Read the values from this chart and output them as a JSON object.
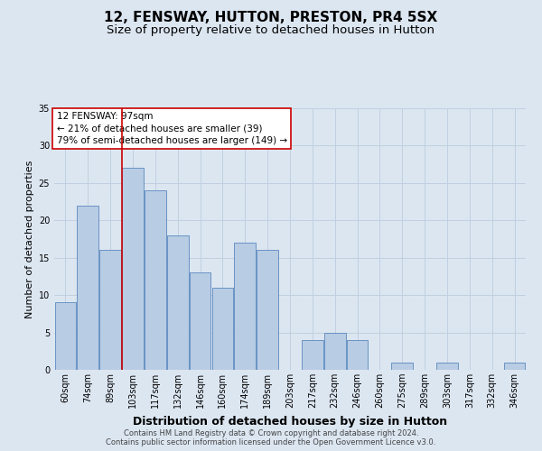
{
  "title": "12, FENSWAY, HUTTON, PRESTON, PR4 5SX",
  "subtitle": "Size of property relative to detached houses in Hutton",
  "xlabel": "Distribution of detached houses by size in Hutton",
  "ylabel": "Number of detached properties",
  "categories": [
    "60sqm",
    "74sqm",
    "89sqm",
    "103sqm",
    "117sqm",
    "132sqm",
    "146sqm",
    "160sqm",
    "174sqm",
    "189sqm",
    "203sqm",
    "217sqm",
    "232sqm",
    "246sqm",
    "260sqm",
    "275sqm",
    "289sqm",
    "303sqm",
    "317sqm",
    "332sqm",
    "346sqm"
  ],
  "values": [
    9,
    22,
    16,
    27,
    24,
    18,
    13,
    11,
    17,
    16,
    0,
    4,
    5,
    4,
    0,
    1,
    0,
    1,
    0,
    0,
    1
  ],
  "bar_color": "#b8cce4",
  "bar_edge_color": "#5a88be",
  "vline_x_index": 2.5,
  "vline_color": "#cc0000",
  "annotation_line1": "12 FENSWAY: 97sqm",
  "annotation_line2": "← 21% of detached houses are smaller (39)",
  "annotation_line3": "79% of semi-detached houses are larger (149) →",
  "annotation_box_color": "#ffffff",
  "annotation_box_edge_color": "#cc0000",
  "ylim": [
    0,
    35
  ],
  "yticks": [
    0,
    5,
    10,
    15,
    20,
    25,
    30,
    35
  ],
  "grid_color": "#c0d0e0",
  "background_color": "#dce6f1",
  "plot_bg_color": "#dce6f1",
  "footer_text": "Contains HM Land Registry data © Crown copyright and database right 2024.\nContains public sector information licensed under the Open Government Licence v3.0.",
  "title_fontsize": 11,
  "subtitle_fontsize": 9.5,
  "xlabel_fontsize": 9,
  "ylabel_fontsize": 8,
  "annotation_fontsize": 7.5,
  "tick_fontsize": 7,
  "footer_fontsize": 6
}
